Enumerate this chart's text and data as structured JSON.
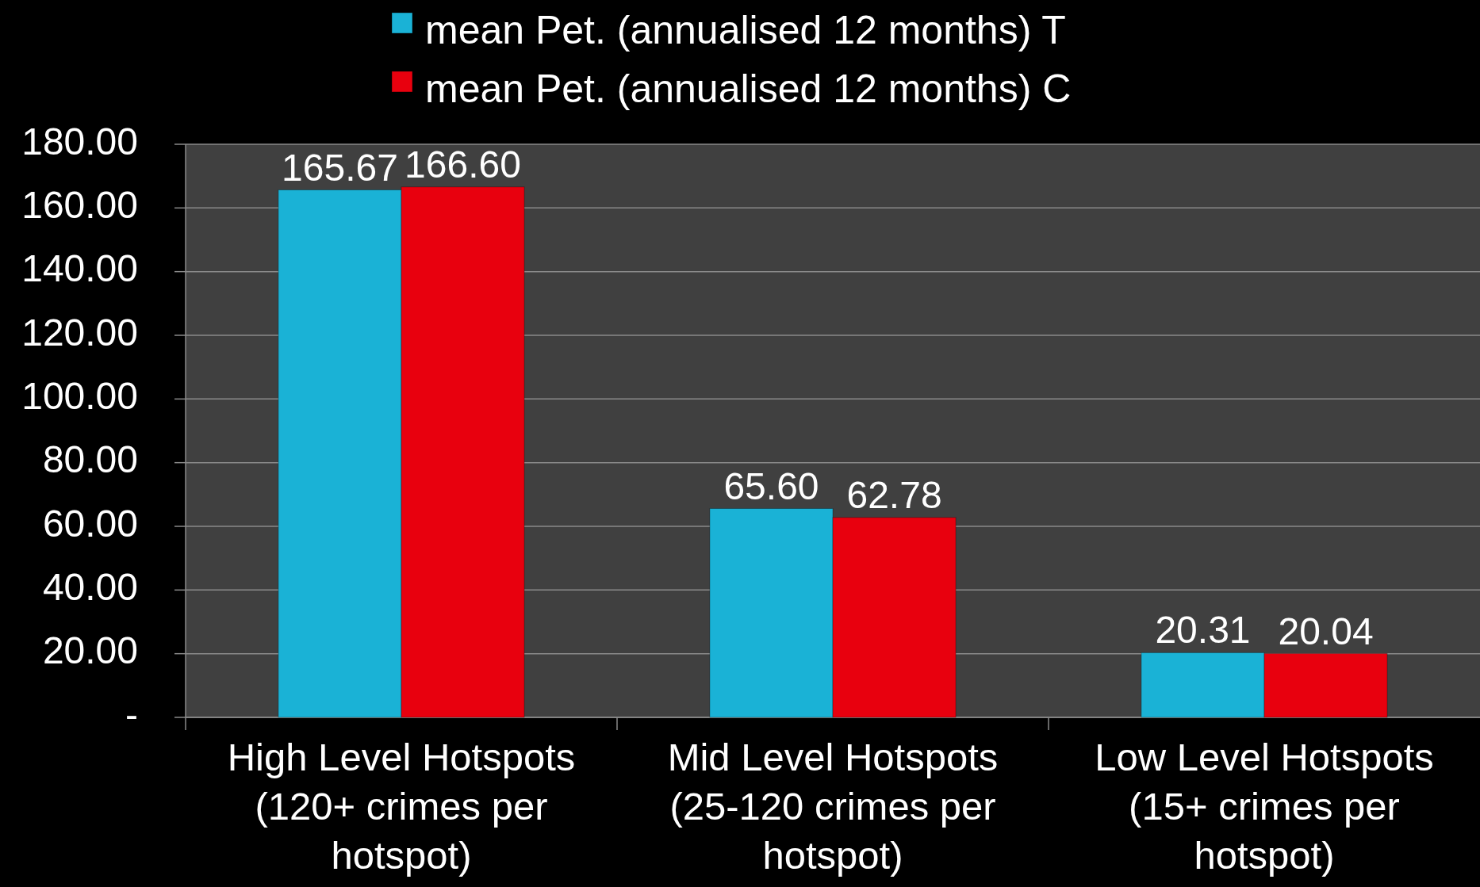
{
  "chart_data": {
    "type": "bar",
    "categories": [
      "High Level Hotspots (120+  crimes per hotspot)",
      "Mid Level Hotspots (25-120 crimes per hotspot)",
      "Low Level Hotspots (15+ crimes per hotspot)"
    ],
    "series": [
      {
        "name": "mean Pet. (annualised 12 months) T",
        "color": "#1ab2d6",
        "values": [
          165.67,
          65.6,
          20.31
        ],
        "value_labels": [
          "165.67",
          "65.60",
          "20.31"
        ]
      },
      {
        "name": "mean Pet. (annualised 12 months) C",
        "color": "#e8000e",
        "values": [
          166.6,
          62.78,
          20.04
        ],
        "value_labels": [
          "166.60",
          "62.78",
          "20.04"
        ]
      }
    ],
    "ylim": [
      0,
      180
    ],
    "yticks": [
      {
        "value": 0,
        "label": "-"
      },
      {
        "value": 20,
        "label": "20.00"
      },
      {
        "value": 40,
        "label": "40.00"
      },
      {
        "value": 60,
        "label": "60.00"
      },
      {
        "value": 80,
        "label": "80.00"
      },
      {
        "value": 100,
        "label": "100.00"
      },
      {
        "value": 120,
        "label": "120.00"
      },
      {
        "value": 140,
        "label": "140.00"
      },
      {
        "value": 160,
        "label": "160.00"
      },
      {
        "value": 180,
        "label": "180.00"
      }
    ],
    "grid": "y",
    "legend": "top"
  }
}
